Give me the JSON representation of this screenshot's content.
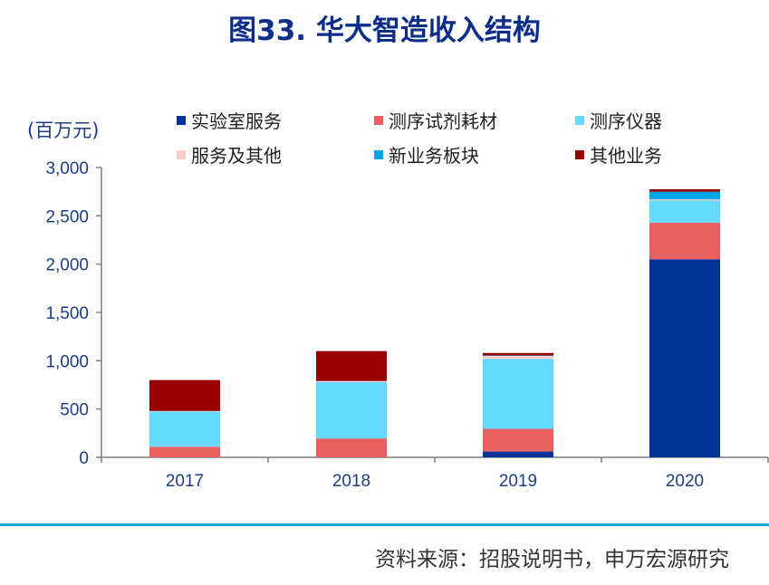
{
  "title": "图33. 华大智造收入结构",
  "unit_label": "(百万元)",
  "source": "资料来源：招股说明书，申万宏源研究",
  "chart_data": {
    "type": "bar",
    "stacked": true,
    "categories": [
      "2017",
      "2018",
      "2019",
      "2020"
    ],
    "series": [
      {
        "name": "实验室服务",
        "color": "#003399",
        "values": [
          0,
          0,
          60,
          2050
        ]
      },
      {
        "name": "测序试剂耗材",
        "color": "#e86060",
        "values": [
          110,
          195,
          235,
          380
        ]
      },
      {
        "name": "测序仪器",
        "color": "#66d9ff",
        "values": [
          365,
          585,
          725,
          230
        ]
      },
      {
        "name": "服务及其他",
        "color": "#ffcccc",
        "values": [
          5,
          10,
          30,
          10
        ]
      },
      {
        "name": "新业务板块",
        "color": "#00a6e8",
        "values": [
          0,
          0,
          5,
          80
        ]
      },
      {
        "name": "其他业务",
        "color": "#990000",
        "values": [
          320,
          310,
          25,
          25
        ]
      }
    ],
    "ylim": [
      0,
      3000
    ],
    "yticks": [
      0,
      500,
      1000,
      1500,
      2000,
      2500,
      3000
    ],
    "ytick_labels": [
      "0",
      "500",
      "1,000",
      "1,500",
      "2,000",
      "2,500",
      "3,000"
    ],
    "xlabel": "",
    "ylabel": "(百万元)",
    "legend_position": "top"
  }
}
